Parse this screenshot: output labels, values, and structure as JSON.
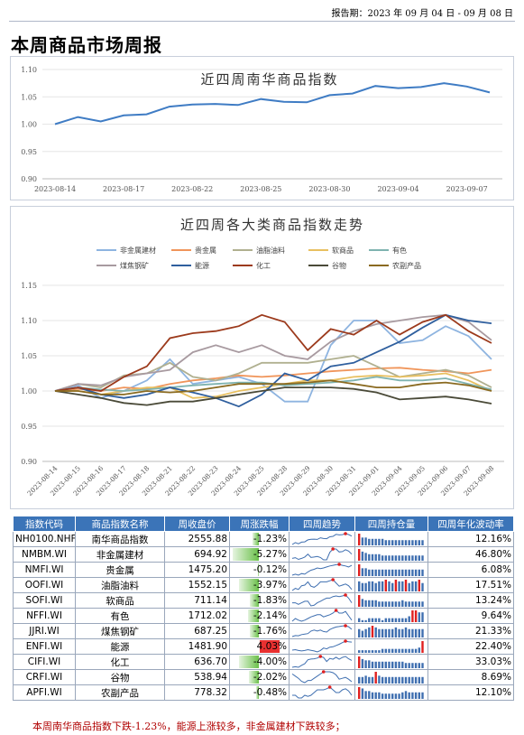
{
  "report_date": "报告期：2023 年 09 月 04 日 - 09 月 08 日",
  "page_title": "本周商品市场周报",
  "summary": "本周南华商品指数下跌-1.23%，能源上涨较多，非金属建材下跌较多；",
  "colors": {
    "header_bg": "#3b74b8",
    "positive": "#e83030",
    "negative": "#6ac04a",
    "index_line": "#3f7cc4"
  },
  "chart_data": [
    {
      "type": "line",
      "title": "近四周南华商品指数",
      "ylim": [
        0.9,
        1.1
      ],
      "yticks": [
        "0.90",
        "0.95",
        "1.00",
        "1.05",
        "1.10"
      ],
      "xticks": [
        "2023-08-14",
        "2023-08-17",
        "2023-08-22",
        "2023-08-25",
        "2023-08-30",
        "2023-09-04",
        "2023-09-07"
      ],
      "xtick_positions": [
        0,
        3,
        6,
        9,
        12,
        15,
        18
      ],
      "series": [
        {
          "name": "",
          "values": [
            1.0,
            1.013,
            1.005,
            1.016,
            1.018,
            1.032,
            1.036,
            1.037,
            1.035,
            1.046,
            1.041,
            1.04,
            1.053,
            1.056,
            1.07,
            1.066,
            1.068,
            1.075,
            1.069,
            1.058
          ]
        }
      ]
    },
    {
      "type": "line",
      "title": "近四周各大类商品指数走势",
      "ylim": [
        0.9,
        1.15
      ],
      "yticks": [
        "0.90",
        "0.95",
        "1.00",
        "1.05",
        "1.10",
        "1.15"
      ],
      "xticks": [
        "2023-08-14",
        "2023-08-15",
        "2023-08-16",
        "2023-08-17",
        "2023-08-18",
        "2023-08-21",
        "2023-08-22",
        "2023-08-23",
        "2023-08-24",
        "2023-08-25",
        "2023-08-28",
        "2023-08-29",
        "2023-08-30",
        "2023-08-31",
        "2023-09-01",
        "2023-09-04",
        "2023-09-05",
        "2023-09-06",
        "2023-09-07",
        "2023-09-08"
      ],
      "legend": "top",
      "series": [
        {
          "name": "非金属建材",
          "color": "#8eb4e0",
          "values": [
            1.0,
            1.008,
            0.99,
            1.0,
            1.015,
            1.045,
            1.01,
            1.015,
            1.02,
            1.01,
            0.985,
            0.985,
            1.065,
            1.1,
            1.1,
            1.068,
            1.072,
            1.092,
            1.078,
            1.045
          ]
        },
        {
          "name": "贵金属",
          "color": "#f0955a",
          "values": [
            1.0,
            1.003,
            1.0,
            1.005,
            1.003,
            1.01,
            1.015,
            1.018,
            1.022,
            1.02,
            1.022,
            1.025,
            1.028,
            1.03,
            1.032,
            1.033,
            1.03,
            1.028,
            1.025,
            1.03
          ]
        },
        {
          "name": "油脂油料",
          "color": "#b0b090",
          "values": [
            1.0,
            1.01,
            1.005,
            1.022,
            1.025,
            1.04,
            1.02,
            1.015,
            1.025,
            1.04,
            1.04,
            1.04,
            1.045,
            1.05,
            1.035,
            1.02,
            1.025,
            1.03,
            1.022,
            1.005
          ]
        },
        {
          "name": "软商品",
          "color": "#e8c060",
          "values": [
            1.0,
            1.0,
            0.995,
            1.0,
            1.005,
            1.005,
            0.99,
            0.992,
            1.0,
            1.005,
            1.01,
            1.015,
            1.015,
            1.02,
            1.022,
            1.02,
            1.022,
            1.025,
            1.015,
            1.0
          ]
        },
        {
          "name": "有色",
          "color": "#7fb3b0",
          "values": [
            1.0,
            1.005,
            1.002,
            1.0,
            1.002,
            1.005,
            1.008,
            1.01,
            1.012,
            1.012,
            1.008,
            1.01,
            1.012,
            1.015,
            1.02,
            1.015,
            1.015,
            1.018,
            1.01,
            1.002
          ]
        },
        {
          "name": "煤焦钢矿",
          "color": "#a89aa0",
          "values": [
            1.0,
            1.01,
            1.008,
            1.02,
            1.025,
            1.03,
            1.055,
            1.065,
            1.055,
            1.065,
            1.05,
            1.045,
            1.07,
            1.085,
            1.095,
            1.1,
            1.105,
            1.108,
            1.098,
            1.072
          ]
        },
        {
          "name": "能源",
          "color": "#2f5f9e",
          "values": [
            1.0,
            1.005,
            0.995,
            0.99,
            0.995,
            1.005,
            0.998,
            0.99,
            0.978,
            0.995,
            1.025,
            1.015,
            1.035,
            1.04,
            1.055,
            1.07,
            1.09,
            1.108,
            1.1,
            1.096
          ]
        },
        {
          "name": "化工",
          "color": "#9c3a1c",
          "values": [
            1.0,
            1.005,
            1.0,
            1.02,
            1.035,
            1.075,
            1.082,
            1.085,
            1.092,
            1.108,
            1.098,
            1.058,
            1.088,
            1.08,
            1.1,
            1.08,
            1.098,
            1.108,
            1.085,
            1.068
          ]
        },
        {
          "name": "谷物",
          "color": "#4a4a38",
          "values": [
            1.0,
            0.995,
            0.99,
            0.983,
            0.98,
            0.985,
            0.985,
            0.99,
            0.995,
            1.0,
            1.005,
            1.005,
            1.005,
            1.003,
            0.998,
            0.988,
            0.99,
            0.992,
            0.988,
            0.982
          ]
        },
        {
          "name": "农副产品",
          "color": "#8a6a20",
          "values": [
            1.0,
            1.0,
            0.995,
            0.995,
            1.0,
            0.998,
            1.0,
            1.005,
            1.01,
            1.01,
            1.01,
            1.012,
            1.015,
            1.01,
            1.005,
            1.005,
            1.01,
            1.012,
            1.008,
            1.0
          ]
        }
      ]
    },
    {
      "type": "table",
      "columns": [
        "指数代码",
        "商品指数名称",
        "周收盘价",
        "周涨跌幅",
        "四周趋势",
        "四周持仓量",
        "四周年化波动率"
      ],
      "change_scale_max": 5.27,
      "rows": [
        {
          "code": "NH0100.NHF",
          "name": "南华商品指数",
          "close": "2555.88",
          "change": "-1.23%",
          "change_value": -1.23,
          "vol": "12.16%",
          "trend": [
            1.0,
            1.013,
            1.005,
            1.016,
            1.018,
            1.032,
            1.036,
            1.037,
            1.035,
            1.046,
            1.041,
            1.04,
            1.053,
            1.056,
            1.07,
            1.066,
            1.068,
            1.075,
            1.069,
            1.058
          ],
          "hold": [
            9,
            6,
            6,
            5,
            5,
            5,
            5,
            5,
            4,
            4,
            4,
            4,
            4,
            4,
            4,
            4,
            4,
            4,
            4,
            4
          ]
        },
        {
          "code": "NMBM.WI",
          "name": "非金属建材",
          "close": "694.92",
          "change": "-5.27%",
          "change_value": -5.27,
          "vol": "46.80%",
          "trend": [
            1.0,
            1.008,
            0.99,
            1.0,
            1.015,
            1.045,
            1.01,
            1.015,
            1.02,
            1.01,
            0.985,
            0.985,
            1.065,
            1.1,
            1.1,
            1.068,
            1.072,
            1.092,
            1.078,
            1.045
          ],
          "hold": [
            9,
            7,
            6,
            5,
            5,
            5,
            5,
            4,
            4,
            4,
            4,
            4,
            4,
            4,
            4,
            4,
            4,
            4,
            4,
            4
          ]
        },
        {
          "code": "NMFI.WI",
          "name": "贵金属",
          "close": "1475.20",
          "change": "-0.12%",
          "change_value": -0.12,
          "vol": "6.08%",
          "trend": [
            1.0,
            1.003,
            1.0,
            1.005,
            1.003,
            1.01,
            1.015,
            1.018,
            1.022,
            1.02,
            1.022,
            1.025,
            1.028,
            1.03,
            1.032,
            1.033,
            1.03,
            1.028,
            1.025,
            1.03
          ],
          "hold": [
            9,
            6,
            6,
            5,
            5,
            5,
            5,
            5,
            5,
            5,
            5,
            5,
            5,
            5,
            5,
            5,
            5,
            5,
            5,
            5
          ]
        },
        {
          "code": "OOFI.WI",
          "name": "油脂油料",
          "close": "1552.15",
          "change": "-3.97%",
          "change_value": -3.97,
          "vol": "17.51%",
          "trend": [
            1.0,
            1.01,
            1.005,
            1.022,
            1.025,
            1.04,
            1.02,
            1.015,
            1.025,
            1.04,
            1.04,
            1.04,
            1.045,
            1.05,
            1.035,
            1.02,
            1.025,
            1.03,
            1.022,
            1.005
          ],
          "hold": [
            6,
            5,
            5,
            6,
            6,
            5,
            6,
            6,
            7,
            6,
            5,
            7,
            6,
            6,
            7,
            5,
            6,
            6,
            7,
            5
          ]
        },
        {
          "code": "SOFI.WI",
          "name": "软商品",
          "close": "711.14",
          "change": "-1.83%",
          "change_value": -1.83,
          "vol": "13.24%",
          "trend": [
            1.0,
            1.0,
            0.995,
            1.0,
            1.005,
            1.005,
            0.99,
            0.992,
            1.0,
            1.005,
            1.01,
            1.015,
            1.015,
            1.02,
            1.022,
            1.02,
            1.022,
            1.025,
            1.015,
            1.0
          ],
          "hold": [
            9,
            6,
            5,
            5,
            5,
            5,
            4,
            4,
            4,
            4,
            4,
            4,
            4,
            5,
            4,
            4,
            4,
            4,
            4,
            4
          ]
        },
        {
          "code": "NFFI.WI",
          "name": "有色",
          "close": "1712.02",
          "change": "-2.14%",
          "change_value": -2.14,
          "vol": "9.64%",
          "trend": [
            1.0,
            1.005,
            1.002,
            1.0,
            1.002,
            1.005,
            1.008,
            1.01,
            1.012,
            1.012,
            1.008,
            1.01,
            1.012,
            1.015,
            1.02,
            1.015,
            1.015,
            1.018,
            1.01,
            1.002
          ],
          "hold": [
            2,
            1,
            1,
            2,
            2,
            2,
            2,
            1,
            2,
            2,
            2,
            2,
            2,
            2,
            2,
            3,
            6,
            6,
            5,
            5
          ]
        },
        {
          "code": "JJRI.WI",
          "name": "煤焦钢矿",
          "close": "687.25",
          "change": "-1.76%",
          "change_value": -1.76,
          "vol": "21.33%",
          "trend": [
            1.0,
            1.01,
            1.008,
            1.02,
            1.025,
            1.03,
            1.055,
            1.065,
            1.055,
            1.065,
            1.05,
            1.045,
            1.07,
            1.085,
            1.095,
            1.1,
            1.105,
            1.108,
            1.098,
            1.072
          ],
          "hold": [
            5,
            4,
            5,
            6,
            7,
            6,
            5,
            5,
            5,
            5,
            5,
            6,
            5,
            5,
            6,
            5,
            5,
            5,
            5,
            5
          ]
        },
        {
          "code": "ENFI.WI",
          "name": "能源",
          "close": "1481.90",
          "change": "4.03%",
          "change_value": 4.03,
          "vol": "22.40%",
          "trend": [
            1.0,
            1.005,
            0.995,
            0.99,
            0.995,
            1.005,
            0.998,
            0.99,
            0.978,
            0.995,
            1.025,
            1.015,
            1.035,
            1.04,
            1.055,
            1.07,
            1.09,
            1.108,
            1.1,
            1.096
          ],
          "hold": [
            2,
            2,
            2,
            2,
            2,
            2,
            2,
            3,
            3,
            3,
            3,
            3,
            3,
            3,
            3,
            3,
            3,
            3,
            4,
            9
          ]
        },
        {
          "code": "CIFI.WI",
          "name": "化工",
          "close": "636.70",
          "change": "-4.00%",
          "change_value": -4.0,
          "vol": "33.03%",
          "trend": [
            1.0,
            1.005,
            1.0,
            1.02,
            1.035,
            1.075,
            1.082,
            1.085,
            1.092,
            1.108,
            1.098,
            1.058,
            1.088,
            1.08,
            1.1,
            1.08,
            1.098,
            1.108,
            1.085,
            1.068
          ],
          "hold": [
            9,
            7,
            6,
            6,
            5,
            5,
            5,
            5,
            5,
            5,
            5,
            5,
            5,
            5,
            4,
            4,
            4,
            4,
            4,
            4
          ]
        },
        {
          "code": "CRFI.WI",
          "name": "谷物",
          "close": "538.94",
          "change": "-2.02%",
          "change_value": -2.02,
          "vol": "8.69%",
          "trend": [
            1.0,
            0.995,
            0.99,
            0.983,
            0.98,
            0.985,
            0.985,
            0.99,
            0.995,
            1.0,
            1.005,
            1.005,
            1.005,
            1.003,
            0.998,
            0.988,
            0.99,
            0.992,
            0.988,
            0.982
          ],
          "hold": [
            5,
            5,
            6,
            5,
            5,
            9,
            6,
            5,
            5,
            5,
            5,
            5,
            5,
            5,
            5,
            5,
            5,
            5,
            5,
            5
          ]
        },
        {
          "code": "APFI.WI",
          "name": "农副产品",
          "close": "778.32",
          "change": "-0.48%",
          "change_value": -0.48,
          "vol": "12.10%",
          "trend": [
            1.0,
            1.0,
            0.995,
            0.995,
            1.0,
            0.998,
            1.0,
            1.005,
            1.01,
            1.01,
            1.01,
            1.012,
            1.015,
            1.01,
            1.005,
            1.005,
            1.01,
            1.012,
            1.008,
            1.0
          ],
          "hold": [
            9,
            8,
            6,
            6,
            5,
            5,
            5,
            4,
            4,
            4,
            4,
            4,
            4,
            5,
            6,
            5,
            5,
            5,
            5,
            5
          ]
        }
      ]
    }
  ]
}
